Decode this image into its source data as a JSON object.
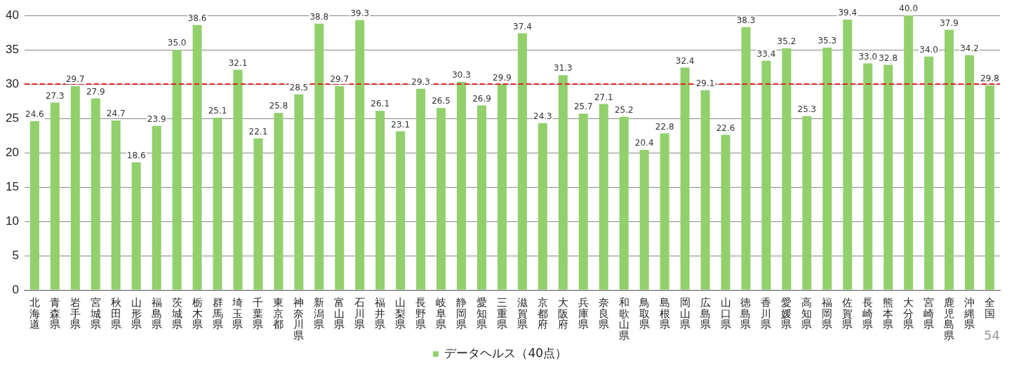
{
  "chart_data": {
    "type": "bar",
    "categories": [
      "北海道",
      "青森県",
      "岩手県",
      "宮城県",
      "秋田県",
      "山形県",
      "福島県",
      "茨城県",
      "栃木県",
      "群馬県",
      "埼玉県",
      "千葉県",
      "東京都",
      "神奈川県",
      "新潟県",
      "富山県",
      "石川県",
      "福井県",
      "山梨県",
      "長野県",
      "岐阜県",
      "静岡県",
      "愛知県",
      "三重県",
      "滋賀県",
      "京都府",
      "大阪府",
      "兵庫県",
      "奈良県",
      "和歌山県",
      "鳥取県",
      "島根県",
      "岡山県",
      "広島県",
      "山口県",
      "徳島県",
      "香川県",
      "愛媛県",
      "高知県",
      "福岡県",
      "佐賀県",
      "長崎県",
      "熊本県",
      "大分県",
      "宮崎県",
      "鹿児島県",
      "沖縄県",
      "全国"
    ],
    "series": [
      {
        "name": "データヘルス（40点）",
        "color": "#92d06c",
        "values": [
          24.6,
          27.3,
          29.7,
          27.9,
          24.7,
          18.6,
          23.9,
          35.0,
          38.6,
          25.1,
          32.1,
          22.1,
          25.8,
          28.5,
          38.8,
          29.7,
          39.3,
          26.1,
          23.1,
          29.3,
          26.5,
          30.3,
          26.9,
          29.9,
          37.4,
          24.3,
          31.3,
          25.7,
          27.1,
          25.2,
          20.4,
          22.8,
          32.4,
          29.1,
          22.6,
          38.3,
          33.4,
          35.2,
          25.3,
          35.3,
          39.4,
          33.0,
          32.8,
          40.0,
          34.0,
          37.9,
          34.2,
          29.8
        ],
        "value_labels": [
          "24.6",
          "27.3",
          "29.7",
          "27.9",
          "24.7",
          "18.6",
          "23.9",
          "35.0",
          "38.6",
          "25.1",
          "32.1",
          "22.1",
          "25.8",
          "28.5",
          "38.8",
          "29.7",
          "39.3",
          "26.1",
          "23.1",
          "29.3",
          "26.5",
          "30.3",
          "26.9",
          "29.9",
          "37.4",
          "24.3",
          "31.3",
          "25.7",
          "27.1",
          "25.2",
          "20.4",
          "22.8",
          "32.4",
          "29.1",
          "22.6",
          "38.3",
          "33.4",
          "35.2",
          "25.3",
          "35.3",
          "39.4",
          "33.0",
          "32.8",
          "40.0",
          "34.0",
          "37.9",
          "34.2",
          "29.8"
        ]
      }
    ],
    "ylim": [
      0,
      40
    ],
    "yticks": [
      0,
      5,
      10,
      15,
      20,
      25,
      30,
      35,
      40
    ],
    "grid": "y",
    "legend": "bottom",
    "ref_lines": [
      {
        "axis": "y",
        "value": 30,
        "color": "#e02020",
        "line_style": "dashed"
      }
    ],
    "annotations": [
      "54"
    ]
  }
}
